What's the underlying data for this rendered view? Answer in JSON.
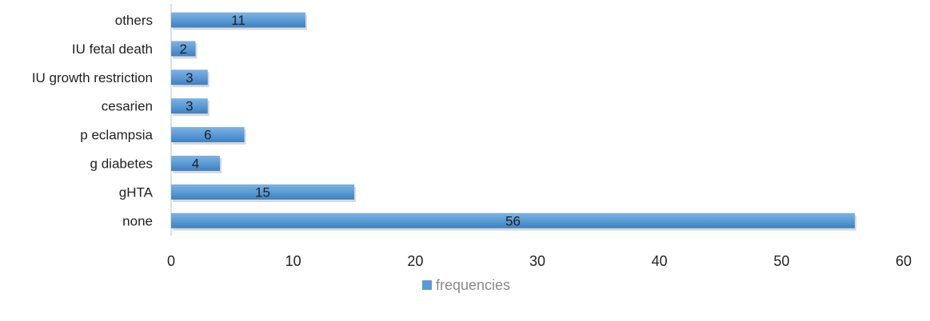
{
  "chart_data": {
    "type": "bar",
    "orientation": "horizontal",
    "categories": [
      "others",
      "IU fetal death",
      "IU growth restriction",
      "cesarien",
      "p eclampsia",
      "g diabetes",
      "gHTA",
      "none"
    ],
    "series": [
      {
        "name": "frequencies",
        "values": [
          11,
          2,
          3,
          3,
          6,
          4,
          15,
          56
        ]
      }
    ],
    "xlim": [
      0,
      60
    ],
    "xticks": [
      "0",
      "10",
      "20",
      "30",
      "40",
      "50",
      "60"
    ],
    "grid": false,
    "data_labels": true,
    "legend_position": "bottom",
    "colors": {
      "bar": "#5b9bd5",
      "bar_top": "#7fb2e2",
      "bar_bottom": "#3e7fc0",
      "bar_shadow": "#c9c9c9",
      "axis": "#bfbfbf"
    }
  }
}
